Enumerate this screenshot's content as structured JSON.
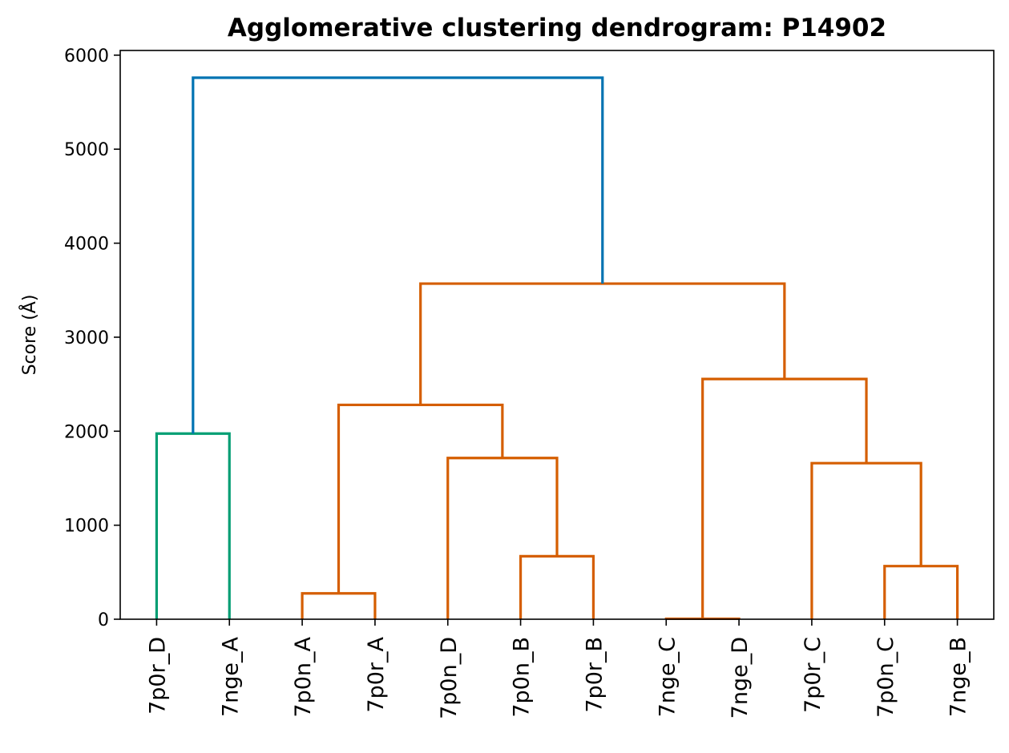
{
  "chart_data": {
    "type": "dendrogram",
    "title": "Agglomerative clustering dendrogram: P14902",
    "xlabel": "",
    "ylabel": "Score (Å)",
    "ylim": [
      0,
      6050
    ],
    "yticks": [
      0,
      1000,
      2000,
      3000,
      4000,
      5000,
      6000
    ],
    "grid": false,
    "leaves": [
      "7p0r_D",
      "7nge_A",
      "7p0n_A",
      "7p0r_A",
      "7p0n_D",
      "7p0n_B",
      "7p0r_B",
      "7nge_C",
      "7nge_D",
      "7p0r_C",
      "7p0n_C",
      "7nge_B"
    ],
    "colors": {
      "green": "#029e73",
      "orange": "#d55e00",
      "blue": "#0173b2"
    },
    "merges": [
      {
        "id": "m1",
        "left": "7p0r_D",
        "right": "7nge_A",
        "height": 1975,
        "color": "green"
      },
      {
        "id": "m2",
        "left": "7p0n_A",
        "right": "7p0r_A",
        "height": 275,
        "color": "orange"
      },
      {
        "id": "m3",
        "left": "7p0n_B",
        "right": "7p0r_B",
        "height": 670,
        "color": "orange"
      },
      {
        "id": "m4",
        "left": "7p0n_D",
        "right": "m3",
        "height": 1715,
        "color": "orange"
      },
      {
        "id": "m5",
        "left": "m2",
        "right": "m4",
        "height": 2280,
        "color": "orange"
      },
      {
        "id": "m6",
        "left": "7nge_C",
        "right": "7nge_D",
        "height": 5,
        "color": "orange"
      },
      {
        "id": "m7",
        "left": "7p0n_C",
        "right": "7nge_B",
        "height": 565,
        "color": "orange"
      },
      {
        "id": "m8",
        "left": "7p0r_C",
        "right": "m7",
        "height": 1660,
        "color": "orange"
      },
      {
        "id": "m9",
        "left": "m6",
        "right": "m8",
        "height": 2555,
        "color": "orange"
      },
      {
        "id": "m10",
        "left": "m5",
        "right": "m9",
        "height": 3570,
        "color": "orange"
      },
      {
        "id": "m11",
        "left": "m1",
        "right": "m10",
        "height": 5760,
        "color": "blue"
      }
    ]
  }
}
